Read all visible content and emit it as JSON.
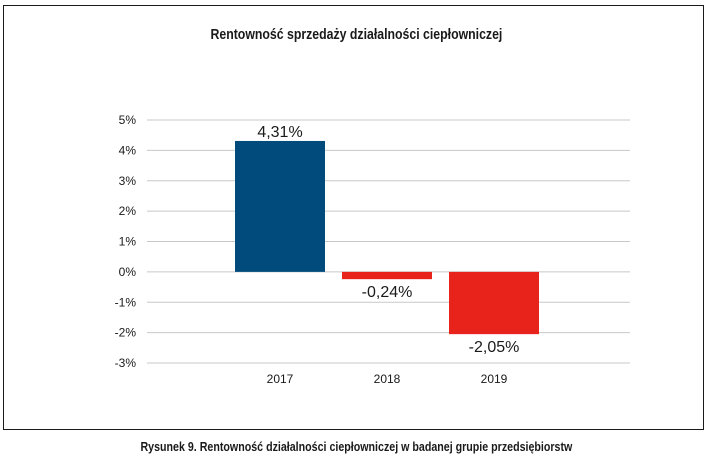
{
  "chart_data": {
    "type": "bar",
    "title": "Rentowność sprzedaży działalności ciepłowniczej",
    "categories": [
      "2017",
      "2018",
      "2019"
    ],
    "values": [
      4.31,
      -0.24,
      -2.05
    ],
    "value_labels": [
      "4,31%",
      "-0,24%",
      "-2,05%"
    ],
    "bar_colors": [
      "#004a7c",
      "#e8231b",
      "#e8231b"
    ],
    "ylim": [
      -3,
      5
    ],
    "yticks": [
      5,
      4,
      3,
      2,
      1,
      0,
      -1,
      -2,
      -3
    ],
    "ytick_labels": [
      "5%",
      "4%",
      "3%",
      "2%",
      "1%",
      "0%",
      "-1%",
      "-2%",
      "-3%"
    ],
    "grid": true,
    "legend": "none"
  },
  "figure": {
    "caption": "Rysunek 9. Rentowność działalności ciepłowniczej w badanej grupie przedsiębiorstw"
  }
}
